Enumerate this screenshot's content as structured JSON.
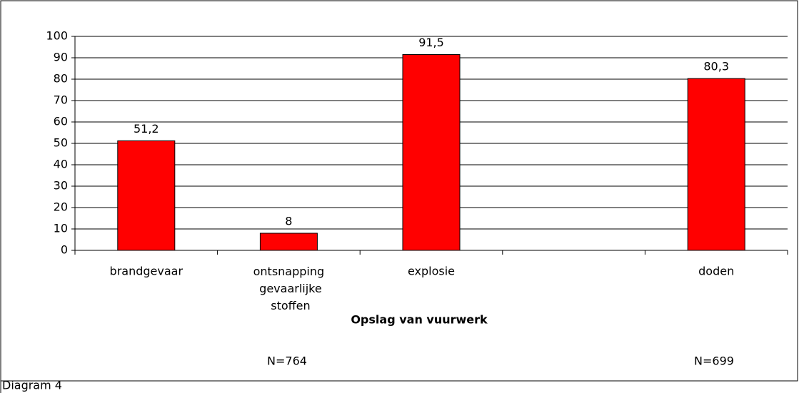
{
  "chart_data": {
    "type": "bar",
    "categories": [
      "brandgevaar",
      "ontsnapping gevaarlijke stoffen",
      "explosie",
      null,
      "doden"
    ],
    "values": [
      51.2,
      8,
      91.5,
      null,
      80.3
    ],
    "value_labels": [
      "51,2",
      "8",
      "91,5",
      null,
      "80,3"
    ],
    "color": "#ff0000",
    "x_label": "Opslag van vuurwerk",
    "annotations": [
      "N=764",
      "N=699"
    ],
    "footer": "Diagram 4",
    "ylim": [
      0,
      100
    ],
    "yticks": [
      0,
      10,
      20,
      30,
      40,
      50,
      60,
      70,
      80,
      90,
      100
    ],
    "grid": true
  }
}
